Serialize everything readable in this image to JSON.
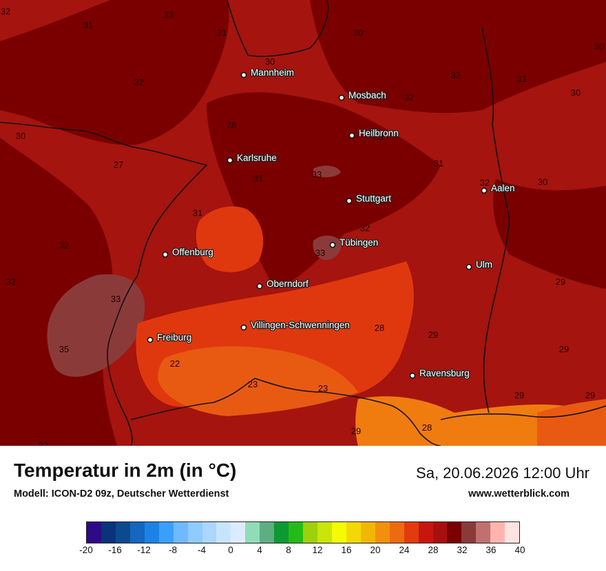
{
  "title": "Temperatur in 2m (in °C)",
  "model": "Modell: ICON-D2 09z, Deutscher Wetterdienst",
  "datetime": "Sa, 20.06.2026 12:00 Uhr",
  "website": "www.wetterblick.com",
  "colors": {
    "base": "#a5140e",
    "darker": "#7a0000",
    "hot": "#8b3a3a",
    "warm": "#e0380e",
    "warmer": "#e85a12",
    "orange": "#f07c10",
    "border": "#111111"
  },
  "cities": [
    {
      "name": "Mannheim"
    },
    {
      "name": "Mosbach"
    },
    {
      "name": "Heilbronn"
    },
    {
      "name": "Karlsruhe"
    },
    {
      "name": "Stuttgart"
    },
    {
      "name": "Aalen"
    },
    {
      "name": "Tübingen"
    },
    {
      "name": "Offenburg"
    },
    {
      "name": "Ulm"
    },
    {
      "name": "Oberndorf"
    },
    {
      "name": "Villingen-Schwenningen"
    },
    {
      "name": "Freiburg"
    },
    {
      "name": "Ravensburg"
    }
  ],
  "value_labels": [
    "32",
    "33",
    "31",
    "31",
    "30",
    "30",
    "30",
    "32",
    "32",
    "32",
    "31",
    "28",
    "30",
    "30",
    "27",
    "33",
    "31",
    "33",
    "31",
    "30",
    "32",
    "31",
    "33",
    "32",
    "32",
    "32",
    "33",
    "29",
    "35",
    "22",
    "28",
    "29",
    "29",
    "23",
    "23",
    "29",
    "29",
    "29",
    "28",
    "32"
  ],
  "legend": {
    "tick_labels": [
      "-20",
      "-16",
      "-12",
      "-8",
      "-4",
      "0",
      "4",
      "8",
      "12",
      "16",
      "20",
      "24",
      "28",
      "32",
      "36",
      "40"
    ],
    "colors": [
      "#2d0a86",
      "#09337a",
      "#0b4a8e",
      "#1466bf",
      "#1c82e6",
      "#39a0ff",
      "#6fb9ff",
      "#8ecbff",
      "#aad6ff",
      "#c7e4ff",
      "#dcebff",
      "#8fdcb8",
      "#5fad84",
      "#0e9a32",
      "#25bb17",
      "#9cd10c",
      "#c9e509",
      "#f4fb04",
      "#f4d706",
      "#f2b704",
      "#f2900d",
      "#ee6a10",
      "#e33b0e",
      "#c8160e",
      "#a81010",
      "#7a0000",
      "#8b3a3a",
      "#c07070",
      "#ffb5ad",
      "#ffe3e0"
    ]
  }
}
